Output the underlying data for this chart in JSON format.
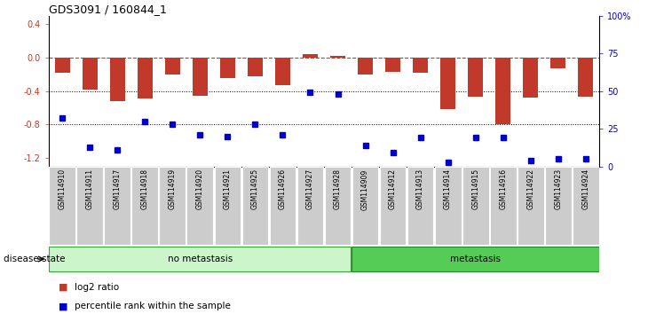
{
  "title": "GDS3091 / 160844_1",
  "samples": [
    "GSM114910",
    "GSM114911",
    "GSM114917",
    "GSM114918",
    "GSM114919",
    "GSM114920",
    "GSM114921",
    "GSM114925",
    "GSM114926",
    "GSM114927",
    "GSM114928",
    "GSM114909",
    "GSM114912",
    "GSM114913",
    "GSM114914",
    "GSM114915",
    "GSM114916",
    "GSM114922",
    "GSM114923",
    "GSM114924"
  ],
  "log2_ratio": [
    -0.18,
    -0.38,
    -0.52,
    -0.49,
    -0.2,
    -0.46,
    -0.25,
    -0.22,
    -0.33,
    0.04,
    0.02,
    -0.2,
    -0.17,
    -0.18,
    -0.62,
    -0.47,
    -0.8,
    -0.48,
    -0.13,
    -0.47
  ],
  "percentile": [
    32,
    13,
    11,
    30,
    28,
    21,
    20,
    28,
    21,
    49,
    48,
    14,
    9,
    19,
    3,
    19,
    19,
    4,
    5,
    5
  ],
  "no_metastasis_count": 11,
  "metastasis_count": 9,
  "bar_color": "#c0392b",
  "dot_color": "#0000cc",
  "dashed_line_color": "#c0392b",
  "grid_color": "#000000",
  "ylim_left": [
    -1.3,
    0.5
  ],
  "ylim_right": [
    0,
    100
  ],
  "yticks_left": [
    0.4,
    0.0,
    -0.4,
    -0.8,
    -1.2
  ],
  "yticks_right": [
    100,
    75,
    50,
    25,
    0
  ],
  "no_metastasis_label": "no metastasis",
  "metastasis_label": "metastasis",
  "disease_state_label": "disease state",
  "legend_bar": "log2 ratio",
  "legend_dot": "percentile rank within the sample",
  "no_metastasis_color": "#ccf5cc",
  "metastasis_color": "#55cc55",
  "label_bg_color": "#cccccc",
  "label_border_color": "#ffffff"
}
